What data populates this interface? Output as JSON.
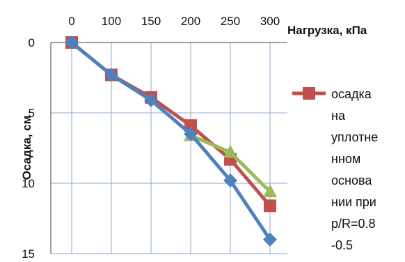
{
  "chart_data": {
    "type": "line",
    "xlabel": "Нагрузка, кПа",
    "ylabel": "Осадка, см",
    "x_ticks": [
      "0",
      "100",
      "150",
      "200",
      "250",
      "300"
    ],
    "y_ticks": [
      "0",
      "5",
      "10",
      "15"
    ],
    "x_categories": [
      0,
      100,
      150,
      200,
      250,
      300
    ],
    "ylim": [
      0,
      15
    ],
    "y_inverted": true,
    "x_axis_position": "top",
    "grid": true,
    "legend_position": "right",
    "series": [
      {
        "name": "осадка на уплотненном основании при p/R=0.8-0.5",
        "legend_lines": [
          "осадка",
          "на",
          "уплотне",
          "нном",
          "основа",
          "нии при",
          "p/R=0.8",
          "-0.5"
        ],
        "color": "#C0504D",
        "marker": "square",
        "values": [
          0,
          2.3,
          3.9,
          5.9,
          8.3,
          11.6
        ]
      },
      {
        "color": "#9BBB59",
        "marker": "triangle",
        "values": [
          null,
          null,
          null,
          6.6,
          7.8,
          10.6
        ]
      },
      {
        "color": "#4F81BD",
        "marker": "diamond",
        "values": [
          0,
          2.3,
          4.1,
          6.5,
          9.8,
          14.0
        ]
      }
    ]
  }
}
